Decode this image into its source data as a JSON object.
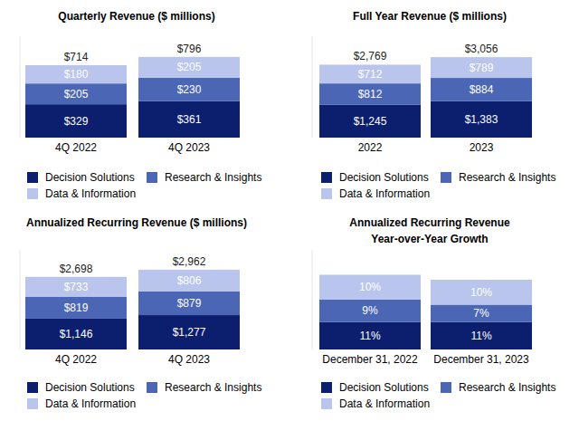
{
  "chart_data": [
    {
      "type": "bar",
      "title": "Quarterly Revenue ($ millions)",
      "categories": [
        "4Q 2022",
        "4Q 2023"
      ],
      "series": [
        {
          "name": "Decision Solutions",
          "color": "#0c1f6e",
          "values": [
            329,
            361
          ],
          "value_labels": [
            "$329",
            "$361"
          ]
        },
        {
          "name": "Research & Insights",
          "color": "#4a66b5",
          "values": [
            205,
            230
          ],
          "value_labels": [
            "$205",
            "$230"
          ]
        },
        {
          "name": "Data & Information",
          "color": "#b9c5ec",
          "values": [
            180,
            205
          ],
          "value_labels": [
            "$180",
            "$205"
          ]
        }
      ],
      "totals": [
        714,
        796
      ],
      "total_labels": [
        "$714",
        "$796"
      ],
      "ylim": [
        0,
        1000
      ],
      "stacked": true,
      "data_labels": true,
      "tick_labels": "x",
      "legend": "bottom"
    },
    {
      "type": "bar",
      "title": "Full Year Revenue ($ millions)",
      "categories": [
        "2022",
        "2023"
      ],
      "series": [
        {
          "name": "Decision Solutions",
          "color": "#0c1f6e",
          "values": [
            1245,
            1383
          ],
          "value_labels": [
            "$1,245",
            "$1,383"
          ]
        },
        {
          "name": "Research & Insights",
          "color": "#4a66b5",
          "values": [
            812,
            884
          ],
          "value_labels": [
            "$812",
            "$884"
          ]
        },
        {
          "name": "Data & Information",
          "color": "#b9c5ec",
          "values": [
            712,
            789
          ],
          "value_labels": [
            "$712",
            "$789"
          ]
        }
      ],
      "totals": [
        2769,
        3056
      ],
      "total_labels": [
        "$2,769",
        "$3,056"
      ],
      "ylim": [
        0,
        3850
      ],
      "stacked": true,
      "data_labels": true,
      "tick_labels": "x",
      "legend": "bottom"
    },
    {
      "type": "bar",
      "title": "Annualized Recurring Revenue ($ millions)",
      "categories": [
        "4Q 2022",
        "4Q 2023"
      ],
      "series": [
        {
          "name": "Decision Solutions",
          "color": "#0c1f6e",
          "values": [
            1146,
            1277
          ],
          "value_labels": [
            "$1,146",
            "$1,277"
          ]
        },
        {
          "name": "Research & Insights",
          "color": "#4a66b5",
          "values": [
            819,
            879
          ],
          "value_labels": [
            "$819",
            "$879"
          ]
        },
        {
          "name": "Data & Information",
          "color": "#b9c5ec",
          "values": [
            733,
            806
          ],
          "value_labels": [
            "$733",
            "$806"
          ]
        }
      ],
      "totals": [
        2698,
        2962
      ],
      "total_labels": [
        "$2,698",
        "$2,962"
      ],
      "ylim": [
        0,
        3700
      ],
      "stacked": true,
      "data_labels": true,
      "tick_labels": "x",
      "legend": "bottom"
    },
    {
      "type": "bar",
      "title": "Annualized Recurring Revenue",
      "subtitle": "Year-over-Year Growth",
      "categories": [
        "December 31, 2022",
        "December 31, 2023"
      ],
      "series": [
        {
          "name": "Decision Solutions",
          "color": "#0c1f6e",
          "values": [
            11,
            11
          ],
          "value_labels": [
            "11%",
            "11%"
          ]
        },
        {
          "name": "Research & Insights",
          "color": "#4a66b5",
          "values": [
            9,
            7
          ],
          "value_labels": [
            "9%",
            "7%"
          ]
        },
        {
          "name": "Data & Information",
          "color": "#b9c5ec",
          "values": [
            10,
            10
          ],
          "value_labels": [
            "10%",
            "10%"
          ]
        }
      ],
      "ylim": [
        0,
        40
      ],
      "stacked": true,
      "data_labels": true,
      "tick_labels": "x",
      "legend": "bottom"
    }
  ]
}
